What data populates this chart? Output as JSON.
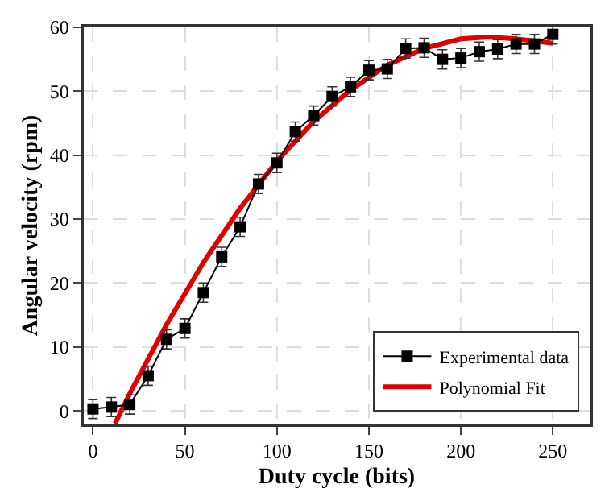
{
  "chart_data": {
    "type": "line",
    "xlabel": "Duty cycle (bits)",
    "ylabel": "Angular velocity (rpm)",
    "xlim": [
      -5,
      270
    ],
    "xticks": [
      0,
      50,
      100,
      150,
      200,
      250
    ],
    "ylim": [
      -2,
      60
    ],
    "yticks": [
      0,
      10,
      20,
      30,
      40,
      50,
      60
    ],
    "grid": true,
    "legend": "bottom right",
    "series": [
      {
        "name": "Experimental data",
        "color": "#000000",
        "marker": "square",
        "line_style": "solid",
        "x": [
          0,
          10,
          20,
          30,
          40,
          50,
          60,
          70,
          80,
          90,
          100,
          110,
          120,
          130,
          140,
          150,
          160,
          170,
          180,
          190,
          200,
          210,
          220,
          230,
          240,
          250
        ],
        "values": [
          0.3,
          0.6,
          1.0,
          5.5,
          11.2,
          12.9,
          18.5,
          24.1,
          28.8,
          35.5,
          38.8,
          43.7,
          46.2,
          49.2,
          50.7,
          53.3,
          53.5,
          56.7,
          56.8,
          55.0,
          55.2,
          56.2,
          56.6,
          57.4,
          57.4,
          58.9
        ],
        "errors": [
          1.5,
          1.5,
          1.5,
          1.5,
          1.5,
          1.5,
          1.5,
          1.5,
          1.5,
          1.5,
          1.5,
          1.5,
          1.5,
          1.5,
          1.5,
          1.5,
          1.5,
          1.5,
          1.5,
          1.5,
          1.5,
          1.5,
          1.5,
          1.5,
          1.5,
          1.5
        ]
      },
      {
        "name": "Polynomial Fit",
        "color": "#e00000",
        "marker": "none",
        "line_style": "solid",
        "x": [
          12,
          20,
          40,
          60,
          80,
          100,
          120,
          140,
          160,
          180,
          200,
          215,
          230,
          250
        ],
        "values": [
          -2,
          2.7,
          13.5,
          23.2,
          31.7,
          39.1,
          45.3,
          50.2,
          54.1,
          56.7,
          58.2,
          58.5,
          58.2,
          57.5
        ]
      }
    ]
  }
}
